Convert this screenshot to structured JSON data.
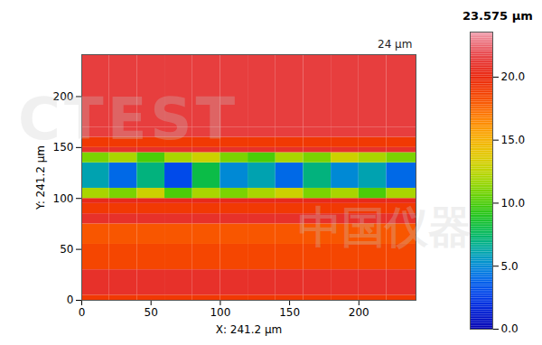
{
  "chart_data": {
    "type": "heatmap",
    "xlabel": "X: 241.2 µm",
    "ylabel": "Y: 241.2 µm",
    "xlim": [
      0,
      241.2
    ],
    "ylim": [
      0,
      241.2
    ],
    "xticks": [
      0,
      50,
      100,
      150,
      200
    ],
    "yticks": [
      0,
      50,
      100,
      150,
      200
    ],
    "x_bins": [
      0,
      20,
      40,
      60,
      80,
      100,
      120,
      140,
      160,
      180,
      200,
      220,
      241.2
    ],
    "y_bins": [
      0,
      5,
      30,
      55,
      75,
      85,
      95,
      100,
      110,
      135,
      145,
      150,
      160,
      170,
      241.2
    ],
    "values": [
      [
        19,
        19,
        19,
        19,
        19,
        19,
        19,
        19,
        19,
        19,
        19,
        19
      ],
      [
        21,
        21,
        21,
        21,
        21,
        21,
        21,
        21,
        21,
        21,
        21,
        21
      ],
      [
        18.5,
        18.5,
        18.5,
        18.5,
        18.5,
        18.5,
        18.5,
        18.5,
        18.5,
        18.5,
        18.5,
        18.5
      ],
      [
        18,
        18,
        18,
        18,
        18,
        18,
        18,
        18,
        18,
        18,
        18,
        18
      ],
      [
        21,
        21,
        21,
        21,
        21,
        21,
        21,
        21,
        21,
        21,
        21,
        21
      ],
      [
        19,
        19,
        19,
        19,
        19,
        19,
        19,
        19,
        19,
        19,
        19,
        19
      ],
      [
        20.5,
        20.5,
        20.5,
        20.5,
        20.5,
        20.5,
        20.5,
        20.5,
        20.5,
        20.5,
        20.5,
        20.5
      ],
      [
        12,
        11,
        13,
        10,
        12,
        11,
        12,
        13,
        11,
        12,
        10,
        12
      ],
      [
        6,
        4,
        7,
        3,
        8,
        5,
        6,
        4,
        7,
        5,
        6,
        4
      ],
      [
        11,
        12,
        10,
        12,
        13,
        11,
        10,
        12,
        11,
        13,
        12,
        11
      ],
      [
        21,
        21,
        21,
        21,
        21,
        21,
        21,
        21,
        21,
        21,
        21,
        21
      ],
      [
        19,
        19,
        19,
        19,
        19,
        19,
        19,
        19,
        19,
        19,
        19,
        19
      ],
      [
        21.5,
        21.5,
        21.5,
        21.5,
        21.5,
        21.5,
        21.5,
        21.5,
        21.5,
        21.5,
        21.5,
        21.5
      ],
      [
        21.5,
        21.5,
        21.5,
        21.5,
        21.5,
        21.5,
        21.5,
        21.5,
        21.5,
        21.5,
        21.5,
        21.5
      ]
    ],
    "colorbar": {
      "label": "23.575 µm",
      "lim": [
        0,
        23.575
      ],
      "ticks": [
        {
          "value": 0,
          "label": "0.0"
        },
        {
          "value": 5,
          "label": "5.0"
        },
        {
          "value": 10,
          "label": "10.0"
        },
        {
          "value": 15,
          "label": "15.0"
        },
        {
          "value": 20,
          "label": "20.0"
        }
      ]
    },
    "annotations": [
      "24 µm"
    ],
    "watermark": [
      "CTEST",
      "中国仪器"
    ]
  }
}
